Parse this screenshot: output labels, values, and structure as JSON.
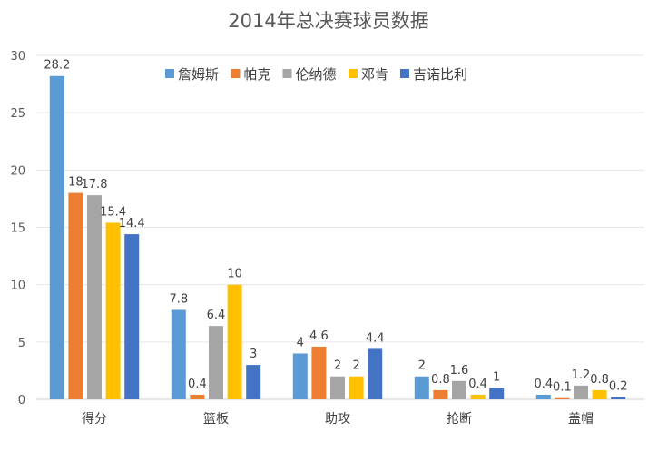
{
  "chart_data": {
    "type": "bar",
    "title": "2014年总决赛球员数据",
    "xlabel": "",
    "ylabel": "",
    "ylim": [
      0,
      30
    ],
    "yticks": [
      0,
      5,
      10,
      15,
      20,
      25,
      30
    ],
    "grid": true,
    "legend_position": "top",
    "categories": [
      "得分",
      "篮板",
      "助攻",
      "抢断",
      "盖帽"
    ],
    "series": [
      {
        "name": "詹姆斯",
        "color": "#5B9BD5",
        "values": [
          28.2,
          7.8,
          4,
          2,
          0.4
        ]
      },
      {
        "name": "帕克",
        "color": "#ED7D31",
        "values": [
          18,
          0.4,
          4.6,
          0.8,
          0.1
        ]
      },
      {
        "name": "伦纳德",
        "color": "#A5A5A5",
        "values": [
          17.8,
          6.4,
          2,
          1.6,
          1.2
        ]
      },
      {
        "name": "邓肯",
        "color": "#FFC000",
        "values": [
          15.4,
          10,
          2,
          0.4,
          0.8
        ]
      },
      {
        "name": "吉诺比利",
        "color": "#4472C4",
        "values": [
          14.4,
          3,
          4.4,
          1,
          0.2
        ]
      }
    ]
  }
}
